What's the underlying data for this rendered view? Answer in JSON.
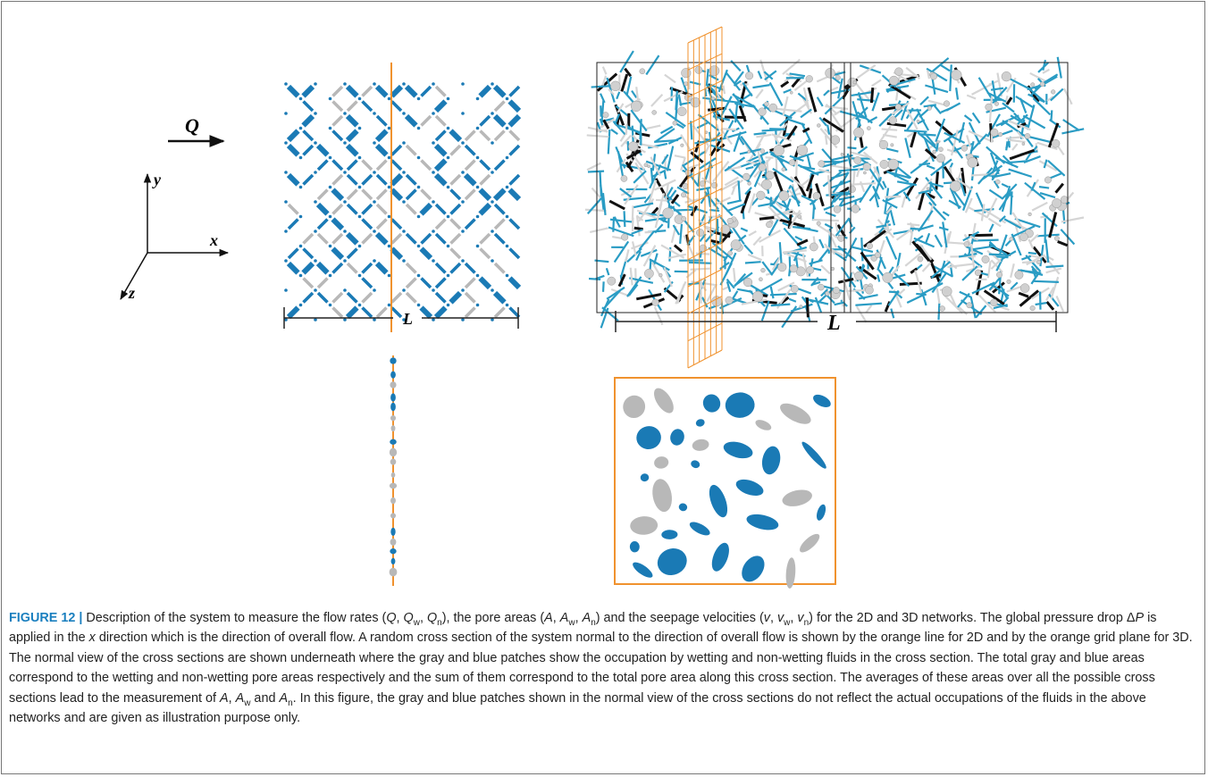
{
  "figure": {
    "flow_label": "Q",
    "axes": {
      "y": "y",
      "x": "x",
      "z": "z"
    },
    "length_2d": "L",
    "length_3d": "L"
  },
  "caption": {
    "label": "FIGURE 12 |",
    "parts": [
      " Description of the system to measure the flow rates (",
      "Q",
      ", ",
      "Q",
      "w",
      ", ",
      "Q",
      "n",
      "), the pore areas (",
      "A",
      ", ",
      "A",
      "w",
      ", ",
      "A",
      "n",
      ") and the seepage velocities (",
      "v",
      ", ",
      "v",
      "w",
      ", ",
      "v",
      "n",
      ") for the 2D and 3D networks. The global pressure drop Δ",
      "P",
      " is applied in the ",
      "x",
      " direction which is the direction of overall flow. A random cross section of the system normal to the direction of overall flow is shown by the orange line for 2D and by the orange grid plane for 3D. The normal view of the cross sections are shown underneath where the gray and blue patches show the occupation by wetting and non-wetting fluids in the cross section. The total gray and blue areas correspond to the wetting and non-wetting pore areas respectively and the sum of them correspond to the total pore area along this cross section. The averages of these areas over all the possible cross sections lead to the measurement of ",
      "A",
      ", ",
      "A",
      "w",
      " and ",
      "A",
      "n",
      ". In this figure, the gray and blue patches shown in the normal view of the cross sections do not reflect the actual occupations of the fluids in the above networks and are given as illustration purpose only."
    ]
  }
}
